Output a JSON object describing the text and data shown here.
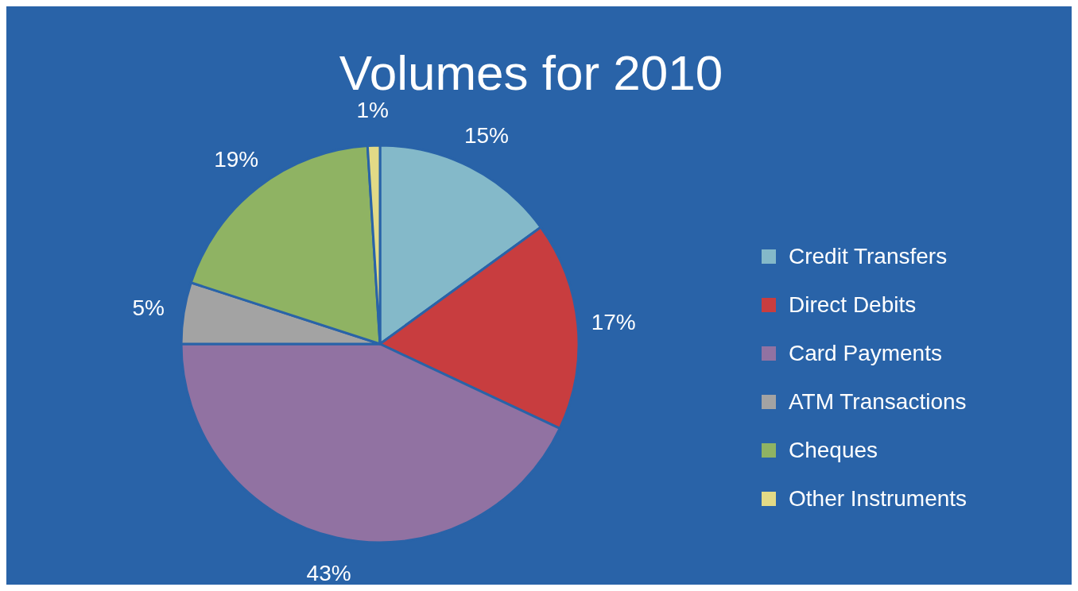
{
  "chart_data": {
    "type": "pie",
    "title": "Volumes for 2010",
    "categories": [
      "Credit Transfers",
      "Direct Debits",
      "Card Payments",
      "ATM Transactions",
      "Cheques",
      "Other Instruments"
    ],
    "values": [
      15,
      17,
      43,
      5,
      19,
      1
    ],
    "value_labels": [
      "15%",
      "17%",
      "43%",
      "5%",
      "19%",
      "1%"
    ],
    "colors": [
      "#84b9c9",
      "#c83d3f",
      "#9172a2",
      "#a3a3a3",
      "#8fb363",
      "#e2da86"
    ],
    "legend": "right"
  }
}
